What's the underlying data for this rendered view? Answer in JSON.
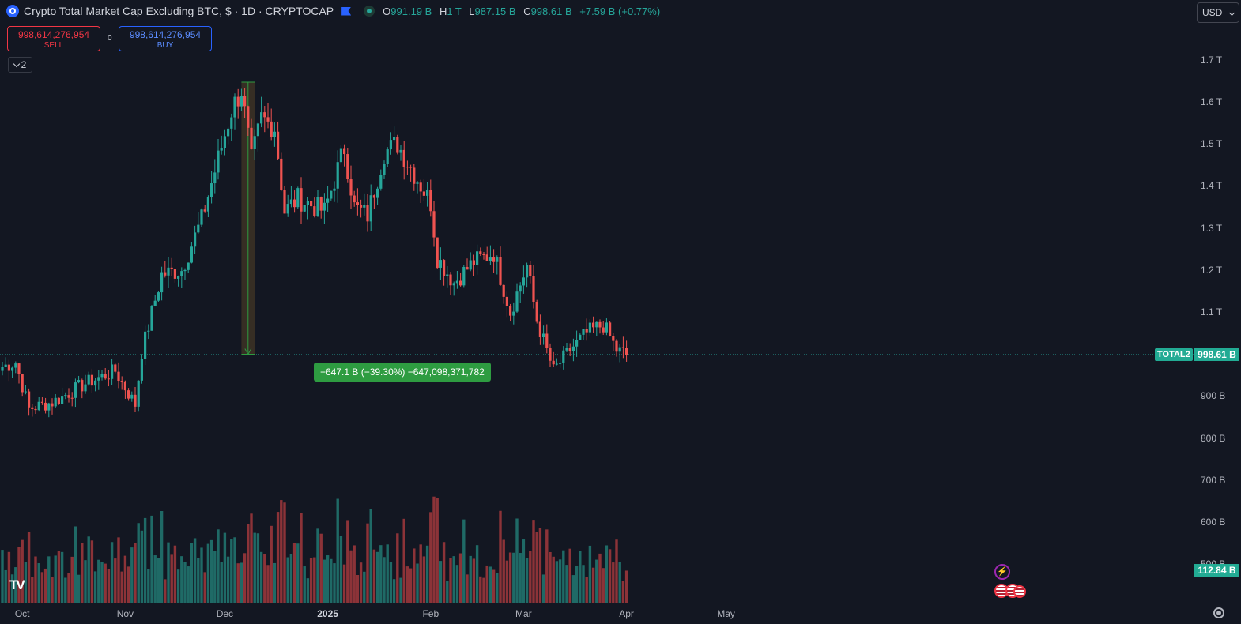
{
  "legend": {
    "title": "Crypto Total Market Cap Excluding BTC, $ · 1D · CRYPTOCAP",
    "o_key": "O",
    "o_val": "991.19 B",
    "h_key": "H",
    "h_val": "1 T",
    "l_key": "L",
    "l_val": "987.15 B",
    "c_key": "C",
    "c_val": "998.61 B",
    "change": "+7.59 B (+0.77%)"
  },
  "trade": {
    "sell_price": "998,614,276,954",
    "sell_label": "SELL",
    "buy_price": "998,614,276,954",
    "buy_label": "BUY",
    "spread": "0"
  },
  "indicators_collapsed_count": "2",
  "currency": "USD",
  "symbol_label": "TOTAL2",
  "last_price_label": "998.61 B",
  "volume_label": "112.84 B",
  "measure_label": "−647.1 B (−39.30%) −647,098,371,782",
  "logo_text": "TV",
  "colors": {
    "up": "#26a69a",
    "down": "#ef5350",
    "vol_up": "#1f6a66",
    "vol_down": "#8c3338",
    "background": "#131722",
    "measure": "#2e9c41"
  },
  "chart_data": {
    "type": "candlestick",
    "x_range": [
      "2024-09-25",
      "2025-05-08"
    ],
    "price_ticks": [
      "1.7 T",
      "1.6 T",
      "1.5 T",
      "1.4 T",
      "1.3 T",
      "1.2 T",
      "1.1 T",
      "900 B",
      "800 B",
      "700 B",
      "600 B",
      "500 B"
    ],
    "price_tick_values": [
      1700,
      1600,
      1500,
      1400,
      1300,
      1200,
      1100,
      900,
      800,
      700,
      600,
      500
    ],
    "time_ticks": [
      {
        "label": "Oct",
        "date": "2024-10-01"
      },
      {
        "label": "Nov",
        "date": "2024-11-01"
      },
      {
        "label": "Dec",
        "date": "2024-12-01"
      },
      {
        "label": "2025",
        "date": "2025-01-01"
      },
      {
        "label": "Feb",
        "date": "2025-02-01"
      },
      {
        "label": "Mar",
        "date": "2025-03-01"
      },
      {
        "label": "Apr",
        "date": "2025-04-01"
      },
      {
        "label": "May",
        "date": "2025-05-01"
      }
    ],
    "close_series": [
      {
        "date": "2024-09-25",
        "close": 970
      },
      {
        "date": "2024-09-29",
        "close": 980
      },
      {
        "date": "2024-10-03",
        "close": 870
      },
      {
        "date": "2024-10-10",
        "close": 885
      },
      {
        "date": "2024-10-20",
        "close": 930
      },
      {
        "date": "2024-10-29",
        "close": 960
      },
      {
        "date": "2024-11-04",
        "close": 880
      },
      {
        "date": "2024-11-06",
        "close": 1005
      },
      {
        "date": "2024-11-12",
        "close": 1190
      },
      {
        "date": "2024-11-18",
        "close": 1200
      },
      {
        "date": "2024-11-24",
        "close": 1320
      },
      {
        "date": "2024-12-03",
        "close": 1580
      },
      {
        "date": "2024-12-06",
        "close": 1630
      },
      {
        "date": "2024-12-09",
        "close": 1460
      },
      {
        "date": "2024-12-12",
        "close": 1560
      },
      {
        "date": "2024-12-16",
        "close": 1540
      },
      {
        "date": "2024-12-19",
        "close": 1340
      },
      {
        "date": "2024-12-23",
        "close": 1370
      },
      {
        "date": "2024-12-31",
        "close": 1340
      },
      {
        "date": "2025-01-06",
        "close": 1490
      },
      {
        "date": "2025-01-09",
        "close": 1350
      },
      {
        "date": "2025-01-13",
        "close": 1330
      },
      {
        "date": "2025-01-18",
        "close": 1480
      },
      {
        "date": "2025-01-22",
        "close": 1500
      },
      {
        "date": "2025-01-27",
        "close": 1430
      },
      {
        "date": "2025-02-01",
        "close": 1360
      },
      {
        "date": "2025-02-03",
        "close": 1230
      },
      {
        "date": "2025-02-08",
        "close": 1170
      },
      {
        "date": "2025-02-14",
        "close": 1220
      },
      {
        "date": "2025-02-20",
        "close": 1240
      },
      {
        "date": "2025-02-25",
        "close": 1100
      },
      {
        "date": "2025-03-02",
        "close": 1210
      },
      {
        "date": "2025-03-05",
        "close": 1080
      },
      {
        "date": "2025-03-10",
        "close": 960
      },
      {
        "date": "2025-03-15",
        "close": 1010
      },
      {
        "date": "2025-03-20",
        "close": 1050
      },
      {
        "date": "2025-03-25",
        "close": 1070
      },
      {
        "date": "2025-03-29",
        "close": 1010
      },
      {
        "date": "2025-04-01",
        "close": 998.61
      }
    ],
    "last_price": 998.61,
    "measure": {
      "start_date": "2024-12-06",
      "end_date": "2024-12-10",
      "from": 1647,
      "to": 999.5
    },
    "volume_visible_max": "approx. 800 B"
  }
}
